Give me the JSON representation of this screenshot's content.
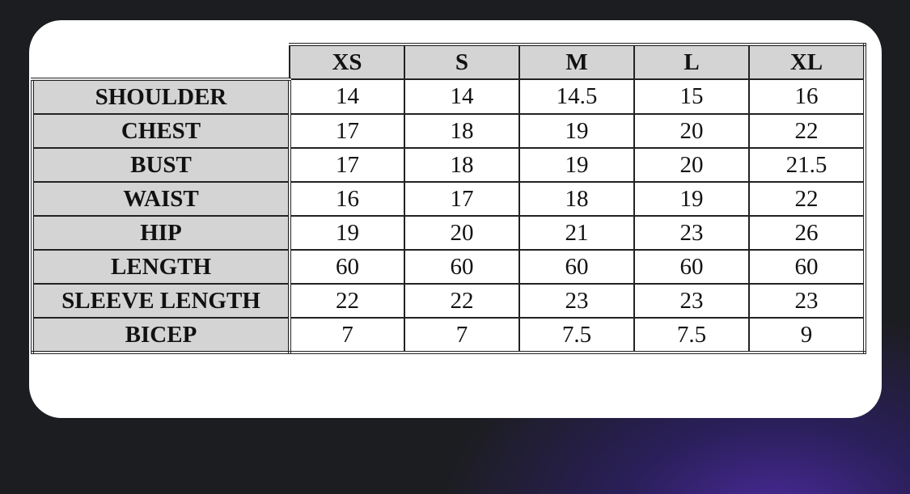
{
  "table": {
    "sizes": [
      "XS",
      "S",
      "M",
      "L",
      "XL"
    ],
    "rows": [
      {
        "label": "SHOULDER",
        "values": [
          "14",
          "14",
          "14.5",
          "15",
          "16"
        ]
      },
      {
        "label": "CHEST",
        "values": [
          "17",
          "18",
          "19",
          "20",
          "22"
        ]
      },
      {
        "label": "BUST",
        "values": [
          "17",
          "18",
          "19",
          "20",
          "21.5"
        ]
      },
      {
        "label": "WAIST",
        "values": [
          "16",
          "17",
          "18",
          "19",
          "22"
        ]
      },
      {
        "label": "HIP",
        "values": [
          "19",
          "20",
          "21",
          "23",
          "26"
        ]
      },
      {
        "label": "LENGTH",
        "values": [
          "60",
          "60",
          "60",
          "60",
          "60"
        ]
      },
      {
        "label": "SLEEVE LENGTH",
        "values": [
          "22",
          "22",
          "23",
          "23",
          "23"
        ]
      },
      {
        "label": "BICEP",
        "values": [
          "7",
          "7",
          "7.5",
          "7.5",
          "9"
        ]
      }
    ]
  },
  "colors": {
    "header_bg": "#d4d4d4",
    "card_bg": "#ffffff",
    "page_bg": "#1c1d20",
    "glow": "#4a2a9a"
  }
}
